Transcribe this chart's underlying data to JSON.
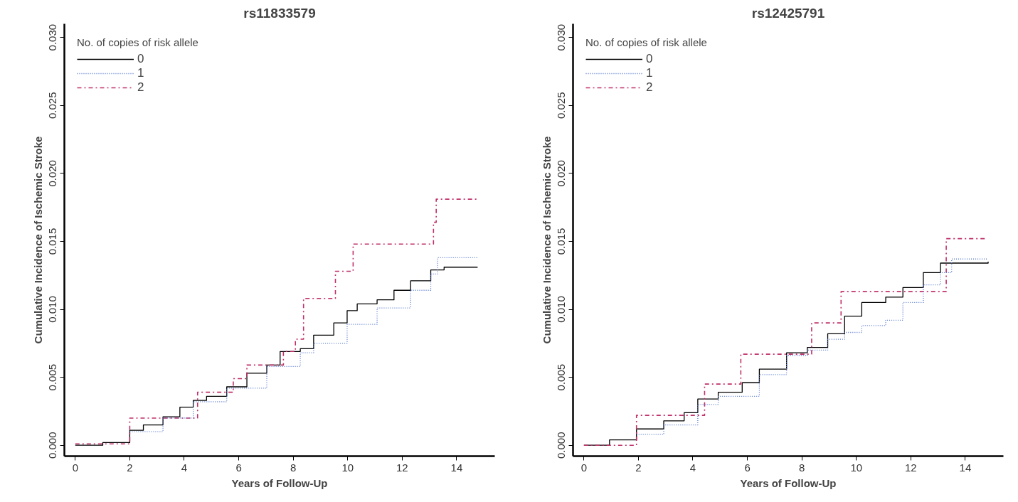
{
  "chart_data": [
    {
      "type": "step",
      "title": "rs11833579",
      "xlabel": "Years of Follow-Up",
      "ylabel": "Cumulative Incidence of Ischemic Stroke",
      "legend_title": "No. of copies of risk allele",
      "legend": "top left",
      "grid": false,
      "xlim": [
        -0.4,
        15.4
      ],
      "ylim": [
        -0.0008,
        0.031
      ],
      "xticks": [
        0,
        2,
        4,
        6,
        8,
        10,
        12,
        14
      ],
      "yticks": [
        {
          "value": 0,
          "label": "0.000"
        },
        0.005,
        {
          "value": 0.01,
          "label": "0.010"
        },
        0.015,
        {
          "value": 0.02,
          "label": "0.020"
        },
        0.025,
        {
          "value": 0.03,
          "label": "0.030"
        }
      ],
      "series": [
        {
          "name": "0",
          "color": "#000000",
          "line_style": "solid",
          "x": [
            0,
            1.01,
            2.0,
            2.5,
            3.22,
            3.84,
            4.33,
            4.82,
            5.56,
            6.3,
            7.03,
            7.52,
            8.26,
            8.75,
            9.49,
            9.98,
            10.35,
            11.08,
            11.7,
            12.31,
            13.05,
            13.54,
            14.77
          ],
          "values": [
            0,
            0.0002,
            0.0011,
            0.0015,
            0.0021,
            0.0028,
            0.0033,
            0.0036,
            0.0043,
            0.0053,
            0.0059,
            0.0069,
            0.0071,
            0.0081,
            0.009,
            0.0099,
            0.0104,
            0.0107,
            0.0114,
            0.0121,
            0.0129,
            0.0131,
            0.0131
          ]
        },
        {
          "name": "1",
          "color": "#5577cc",
          "line_style": "dotted",
          "x": [
            2.0,
            3.22,
            4.33,
            5.56,
            7.03,
            8.26,
            8.75,
            9.98,
            11.08,
            12.31,
            13.05,
            13.3,
            14.77
          ],
          "values": [
            0.001,
            0.002,
            0.0032,
            0.0042,
            0.0058,
            0.0068,
            0.0075,
            0.0089,
            0.0101,
            0.0114,
            0.0126,
            0.0138,
            0.0138
          ]
        },
        {
          "name": "2",
          "color": "#c0306a",
          "line_style": "dashdot",
          "x": [
            0,
            2.0,
            4.49,
            5.8,
            6.3,
            7.64,
            8.08,
            8.38,
            9.55,
            10.2,
            13.15,
            13.25,
            14.77
          ],
          "values": [
            0.0001,
            0.002,
            0.0039,
            0.0049,
            0.0059,
            0.0069,
            0.0078,
            0.0108,
            0.0128,
            0.0148,
            0.0164,
            0.0181,
            0.0181
          ]
        }
      ]
    },
    {
      "type": "step",
      "title": "rs12425791",
      "xlabel": "Years of Follow-Up",
      "ylabel": "Cumulative Incidence of Ischemic Stroke",
      "legend_title": "No. of copies of risk allele",
      "legend": "top left",
      "grid": false,
      "xlim": [
        -0.4,
        15.4
      ],
      "ylim": [
        -0.0008,
        0.031
      ],
      "xticks": [
        0,
        2,
        4,
        6,
        8,
        10,
        12,
        14
      ],
      "yticks": [
        {
          "value": 0,
          "label": "0.000"
        },
        0.005,
        {
          "value": 0.01,
          "label": "0.010"
        },
        0.015,
        {
          "value": 0.02,
          "label": "0.020"
        },
        0.025,
        {
          "value": 0.03,
          "label": "0.030"
        }
      ],
      "series": [
        {
          "name": "0",
          "color": "#000000",
          "line_style": "solid",
          "x": [
            0,
            0.94,
            1.93,
            2.93,
            3.68,
            4.18,
            4.93,
            5.81,
            6.44,
            7.44,
            8.2,
            8.95,
            9.57,
            10.2,
            11.08,
            11.71,
            12.46,
            13.09,
            14.84
          ],
          "values": [
            0,
            0.0004,
            0.0012,
            0.0018,
            0.0024,
            0.0034,
            0.0039,
            0.0046,
            0.0056,
            0.0068,
            0.0072,
            0.0082,
            0.0095,
            0.0105,
            0.0109,
            0.0116,
            0.0127,
            0.0134,
            0.0135
          ]
        },
        {
          "name": "1",
          "color": "#5577cc",
          "line_style": "dotted",
          "x": [
            1.93,
            2.93,
            4.18,
            4.93,
            6.44,
            7.44,
            8.2,
            8.95,
            9.57,
            10.2,
            11.08,
            11.71,
            12.46,
            13.09,
            13.5,
            14.84
          ],
          "values": [
            0.0008,
            0.0015,
            0.003,
            0.0036,
            0.0052,
            0.0066,
            0.007,
            0.0078,
            0.0083,
            0.0088,
            0.0092,
            0.0105,
            0.0118,
            0.0127,
            0.0137,
            0.0137
          ]
        },
        {
          "name": "2",
          "color": "#c0306a",
          "line_style": "dashdot",
          "x": [
            0,
            1.93,
            4.43,
            5.76,
            8.36,
            9.44,
            13.3,
            14.77
          ],
          "values": [
            0,
            0.0022,
            0.0045,
            0.0067,
            0.009,
            0.0113,
            0.0152,
            0.0152
          ]
        }
      ]
    }
  ]
}
